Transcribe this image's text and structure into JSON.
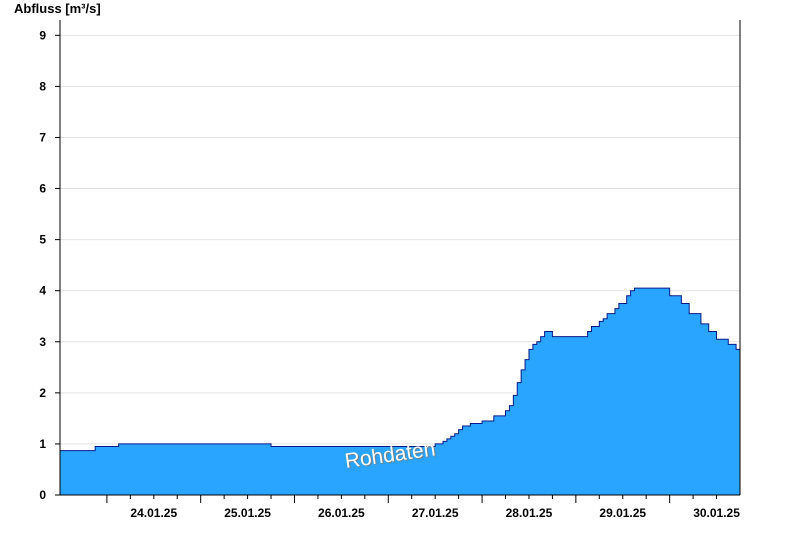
{
  "chart_data": {
    "type": "area",
    "ylabel": "Abfluss [m³/s]",
    "ylim": [
      0,
      9.3
    ],
    "yticks": [
      0,
      1,
      2,
      3,
      4,
      5,
      6,
      7,
      8,
      9
    ],
    "xlim": [
      "23.01.25 12:00",
      "30.01.25 18:00"
    ],
    "xtick_labels": [
      "24.01.25",
      "25.01.25",
      "26.01.25",
      "27.01.25",
      "28.01.25",
      "29.01.25",
      "30.01.25"
    ],
    "grid": true,
    "watermark": "Rohdaten",
    "colors": {
      "fill": "#2aa5ff",
      "line": "#0a1a8c",
      "grid": "#e2e2e2",
      "day_separator": "#0a3a8c"
    },
    "series": [
      {
        "x": [
          "23.01.25 12:00",
          "23.01.25 21:00",
          "24.01.25 03:00",
          "25.01.25 12:00",
          "25.01.25 18:00",
          "27.01.25 12:00",
          "27.01.25 14:00",
          "27.01.25 15:00",
          "27.01.25 16:00",
          "27.01.25 17:00",
          "27.01.25 18:00",
          "27.01.25 19:00",
          "27.01.25 21:00",
          "28.01.25 00:00",
          "28.01.25 03:00",
          "28.01.25 06:00",
          "28.01.25 07:00",
          "28.01.25 08:00",
          "28.01.25 09:00",
          "28.01.25 10:00",
          "28.01.25 11:00",
          "28.01.25 12:00",
          "28.01.25 13:00",
          "28.01.25 14:00",
          "28.01.25 15:00",
          "28.01.25 16:00",
          "28.01.25 18:00",
          "28.01.25 20:00",
          "28.01.25 21:00",
          "29.01.25 03:00",
          "29.01.25 04:00",
          "29.01.25 06:00",
          "29.01.25 07:00",
          "29.01.25 08:00",
          "29.01.25 10:00",
          "29.01.25 11:00",
          "29.01.25 13:00",
          "29.01.25 14:00",
          "29.01.25 15:00",
          "29.01.25 17:00",
          "29.01.25 18:00",
          "30.01.25 00:00",
          "30.01.25 03:00",
          "30.01.25 05:00",
          "30.01.25 08:00",
          "30.01.25 10:00",
          "30.01.25 12:00",
          "30.01.25 15:00",
          "30.01.25 17:00",
          "30.01.25 18:00"
        ],
        "y": [
          0.87,
          0.95,
          1.0,
          1.0,
          0.95,
          1.0,
          1.05,
          1.1,
          1.15,
          1.2,
          1.28,
          1.35,
          1.4,
          1.45,
          1.55,
          1.65,
          1.75,
          1.95,
          2.2,
          2.45,
          2.65,
          2.85,
          2.95,
          3.0,
          3.1,
          3.2,
          3.1,
          3.1,
          3.1,
          3.2,
          3.3,
          3.4,
          3.45,
          3.55,
          3.65,
          3.75,
          3.9,
          4.0,
          4.05,
          4.05,
          4.05,
          3.9,
          3.75,
          3.55,
          3.35,
          3.2,
          3.05,
          2.95,
          2.85,
          2.75
        ]
      }
    ]
  }
}
